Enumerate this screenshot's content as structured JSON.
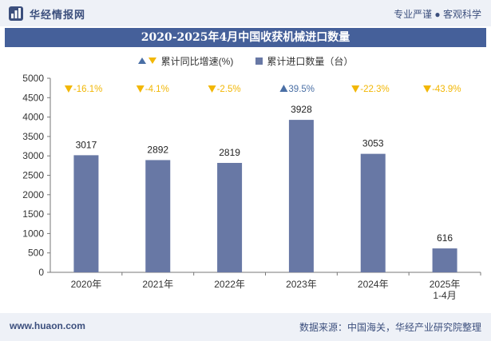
{
  "header": {
    "brand": "华经情报网",
    "tagline": "专业严谨 ● 客观科学",
    "title": "2020-2025年4月中国收获机械进口数量"
  },
  "legend": {
    "growth_label": "累计同比增速(%)",
    "volume_label": "累计进口数量（台）"
  },
  "footer": {
    "site": "www.huaon.com",
    "source": "数据来源：中国海关，华经产业研究院整理"
  },
  "colors": {
    "bar": "#6878a5",
    "up": "#4a6fa5",
    "down": "#f2b705",
    "title_bg": "#45609a"
  },
  "chart_data": {
    "type": "bar",
    "categories": [
      "2020年",
      "2021年",
      "2022年",
      "2023年",
      "2024年",
      "2025年\n1-4月"
    ],
    "series": [
      {
        "name": "累计进口数量（台）",
        "values": [
          3017,
          2892,
          2819,
          3928,
          3053,
          616
        ]
      },
      {
        "name": "累计同比增速(%)",
        "values": [
          -16.1,
          -4.1,
          -2.5,
          39.5,
          -22.3,
          -43.9
        ]
      }
    ],
    "growth_labels": [
      "-16.1%",
      "-4.1%",
      "-2.5%",
      "39.5%",
      "-22.3%",
      "-43.9%"
    ],
    "value_labels": [
      "3017",
      "2892",
      "2819",
      "3928",
      "3053",
      "616"
    ],
    "yticks": [
      "0",
      "500",
      "1000",
      "1500",
      "2000",
      "2500",
      "3000",
      "3500",
      "4000",
      "4500",
      "5000"
    ],
    "ylim": [
      0,
      5000
    ],
    "grid": false
  }
}
